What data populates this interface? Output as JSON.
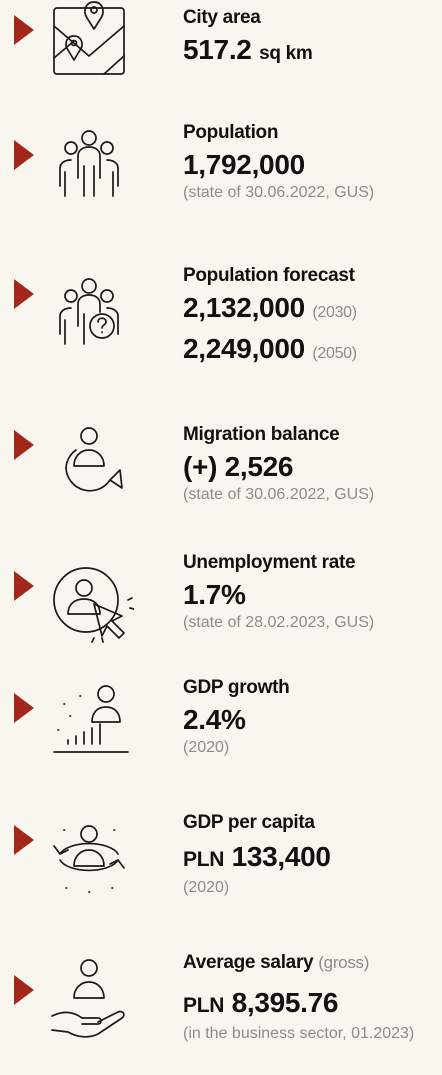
{
  "items": [
    {
      "label": "City area",
      "lines": [
        {
          "value": "517.2",
          "suffix": "sq km"
        }
      ]
    },
    {
      "label": "Population",
      "lines": [
        {
          "value": "1,792,000"
        }
      ],
      "note": "(state of 30.06.2022, GUS)"
    },
    {
      "label": "Population forecast",
      "lines": [
        {
          "value": "2,132,000",
          "suffix_note": "(2030)"
        },
        {
          "value": "2,249,000",
          "suffix_note": "(2050)"
        }
      ]
    },
    {
      "label": "Migration balance",
      "lines": [
        {
          "value": "(+) 2,526"
        }
      ],
      "note": "(state of 30.06.2022, GUS)"
    },
    {
      "label": "Unemployment rate",
      "lines": [
        {
          "value": "1.7%"
        }
      ],
      "note": "(state of 28.02.2023, GUS)"
    },
    {
      "label": "GDP growth",
      "lines": [
        {
          "value": "2.4%"
        }
      ],
      "note": "(2020)"
    },
    {
      "label": "GDP per capita",
      "lines": [
        {
          "prefix": "PLN",
          "value": "133,400"
        }
      ],
      "note": "(2020)"
    },
    {
      "label": "Average salary",
      "label_note": "(gross)",
      "lines": [
        {
          "prefix": "PLN",
          "value": "8,395.76"
        }
      ],
      "note": "(in the business sector, 01.2023)"
    }
  ]
}
